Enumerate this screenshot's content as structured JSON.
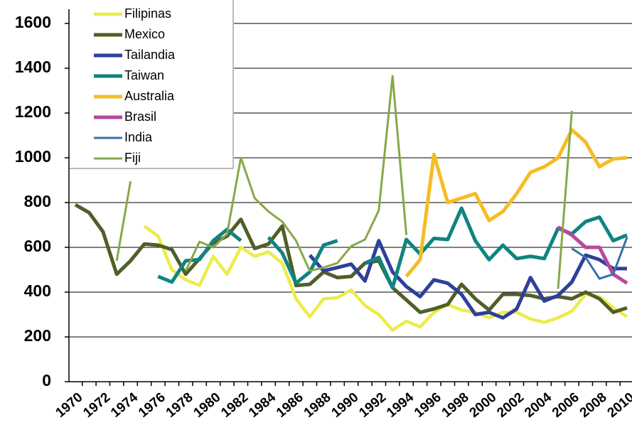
{
  "chart_data": {
    "type": "line",
    "x": [
      1970,
      1971,
      1972,
      1973,
      1974,
      1975,
      1976,
      1977,
      1978,
      1979,
      1980,
      1981,
      1982,
      1983,
      1984,
      1985,
      1986,
      1987,
      1988,
      1989,
      1990,
      1991,
      1992,
      1993,
      1994,
      1995,
      1996,
      1997,
      1998,
      1999,
      2000,
      2001,
      2002,
      2003,
      2004,
      2005,
      2006,
      2007,
      2008,
      2009,
      2010
    ],
    "xlim": [
      1970,
      2010
    ],
    "xticks": [
      1970,
      1972,
      1974,
      1976,
      1978,
      1980,
      1982,
      1984,
      1986,
      1988,
      1990,
      1992,
      1994,
      1996,
      1998,
      2000,
      2002,
      2004,
      2006,
      2008,
      2010
    ],
    "ylim": [
      0,
      1600
    ],
    "yticks": [
      0,
      200,
      400,
      600,
      800,
      1000,
      1200,
      1400,
      1600
    ],
    "grid": true,
    "legend": "upper left",
    "series": [
      {
        "name": "Filipinas",
        "color": "#ecec4a",
        "linewidth": 4.5,
        "values": [
          null,
          null,
          null,
          null,
          null,
          695,
          650,
          500,
          455,
          430,
          560,
          480,
          600,
          560,
          580,
          530,
          370,
          290,
          370,
          375,
          410,
          340,
          300,
          230,
          270,
          245,
          310,
          345,
          320,
          310,
          285,
          310,
          310,
          280,
          265,
          285,
          315,
          390,
          380,
          330,
          290
        ]
      },
      {
        "name": "Mexico",
        "color": "#4f5f27",
        "linewidth": 5,
        "values": [
          790,
          755,
          670,
          480,
          540,
          615,
          610,
          590,
          480,
          550,
          620,
          650,
          725,
          595,
          615,
          695,
          430,
          435,
          490,
          465,
          470,
          530,
          540,
          420,
          365,
          310,
          325,
          345,
          435,
          370,
          320,
          390,
          390,
          385,
          370,
          380,
          370,
          400,
          370,
          310,
          330
        ]
      },
      {
        "name": "Tailandia",
        "color": "#2e3f9c",
        "linewidth": 5,
        "values": [
          null,
          null,
          null,
          null,
          null,
          null,
          null,
          null,
          null,
          null,
          null,
          null,
          null,
          null,
          null,
          null,
          null,
          565,
          495,
          510,
          525,
          450,
          630,
          490,
          425,
          380,
          455,
          440,
          390,
          300,
          310,
          285,
          325,
          465,
          360,
          385,
          445,
          565,
          545,
          505,
          505
        ]
      },
      {
        "name": "Taiwan",
        "color": "#0f8480",
        "linewidth": 5,
        "values": [
          null,
          null,
          null,
          null,
          null,
          null,
          470,
          445,
          540,
          545,
          630,
          680,
          630,
          null,
          645,
          575,
          440,
          490,
          610,
          630,
          null,
          530,
          555,
          420,
          635,
          570,
          640,
          635,
          775,
          630,
          545,
          610,
          550,
          560,
          550,
          685,
          660,
          715,
          735,
          630,
          655
        ]
      },
      {
        "name": "Australia",
        "color": "#f5bd24",
        "linewidth": 5,
        "values": [
          null,
          null,
          null,
          null,
          null,
          null,
          null,
          null,
          null,
          null,
          null,
          null,
          null,
          null,
          null,
          null,
          null,
          null,
          null,
          null,
          null,
          null,
          null,
          null,
          470,
          545,
          1015,
          800,
          820,
          840,
          720,
          760,
          840,
          935,
          960,
          1000,
          1125,
          1070,
          960,
          995,
          1000
        ]
      },
      {
        "name": "Brasil",
        "color": "#b748a0",
        "linewidth": 5,
        "values": [
          null,
          null,
          null,
          null,
          null,
          null,
          null,
          null,
          null,
          null,
          null,
          null,
          null,
          null,
          null,
          null,
          null,
          null,
          null,
          null,
          null,
          null,
          null,
          null,
          null,
          null,
          null,
          null,
          null,
          null,
          null,
          null,
          null,
          null,
          null,
          690,
          655,
          600,
          600,
          480,
          440
        ]
      },
      {
        "name": "India",
        "color": "#3a6fa8",
        "linewidth": 3,
        "values": [
          null,
          null,
          null,
          null,
          null,
          null,
          null,
          null,
          null,
          null,
          null,
          null,
          null,
          null,
          null,
          null,
          null,
          null,
          null,
          null,
          null,
          null,
          null,
          null,
          null,
          null,
          null,
          null,
          null,
          null,
          null,
          null,
          null,
          null,
          null,
          null,
          595,
          555,
          460,
          480,
          645
        ]
      },
      {
        "name": "Fiji",
        "color": "#86a84a",
        "linewidth": 3,
        "values": [
          null,
          null,
          null,
          540,
          895,
          null,
          null,
          null,
          495,
          625,
          600,
          660,
          1000,
          820,
          760,
          715,
          630,
          495,
          510,
          530,
          605,
          635,
          765,
          1365,
          655,
          null,
          null,
          null,
          null,
          null,
          null,
          null,
          null,
          null,
          null,
          415,
          1210,
          null,
          null,
          null,
          null
        ]
      }
    ]
  }
}
